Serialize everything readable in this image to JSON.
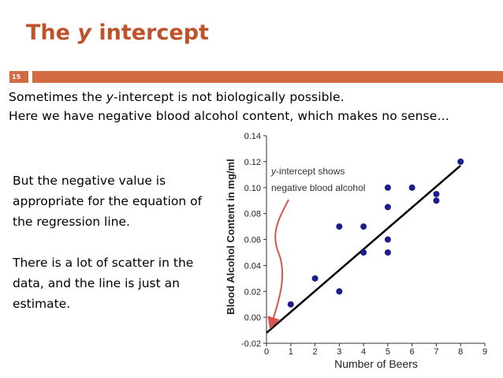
{
  "slide": {
    "title_before": "The ",
    "title_var": "y",
    "title_after": " intercept",
    "slide_number": "15",
    "line1_before": "Sometimes the ",
    "line1_var": "y",
    "line1_after": "-intercept is not biologically possible.",
    "line2": "Here we have negative blood alcohol content, which makes no sense…",
    "para1": "But the negative value is appropriate for the equation of the regression line.",
    "para2": "There is a lot of scatter in the data, and the line is just an estimate.",
    "accent_color": "#d26b44",
    "title_color": "#c0522b"
  },
  "chart_data": {
    "type": "scatter",
    "xlabel": "Number of Beers",
    "ylabel": "Blood Alcohol Content in mg/ml",
    "xlim": [
      0,
      9
    ],
    "ylim": [
      -0.02,
      0.14
    ],
    "x_ticks": [
      "0",
      "1",
      "2",
      "3",
      "4",
      "5",
      "6",
      "7",
      "8",
      "9"
    ],
    "y_ticks": [
      "-0.02",
      "0.00",
      "0.02",
      "0.04",
      "0.06",
      "0.08",
      "0.10",
      "0.12",
      "0.14"
    ],
    "points": [
      {
        "x": 1,
        "y": 0.01
      },
      {
        "x": 2,
        "y": 0.03
      },
      {
        "x": 3,
        "y": 0.07
      },
      {
        "x": 3,
        "y": 0.02
      },
      {
        "x": 4,
        "y": 0.07
      },
      {
        "x": 4,
        "y": 0.05
      },
      {
        "x": 5,
        "y": 0.1
      },
      {
        "x": 5,
        "y": 0.085
      },
      {
        "x": 5,
        "y": 0.06
      },
      {
        "x": 5,
        "y": 0.05
      },
      {
        "x": 6,
        "y": 0.1
      },
      {
        "x": 7,
        "y": 0.095
      },
      {
        "x": 7,
        "y": 0.09
      },
      {
        "x": 8,
        "y": 0.12
      }
    ],
    "regression_line": {
      "x0": 0,
      "y0": -0.012,
      "x1": 8,
      "y1": 0.117
    },
    "annotation": {
      "line1_var": "y",
      "line1_rest": "-intercept shows",
      "line2": "negative blood alcohol",
      "arrow_color": "#d9534f"
    },
    "point_color": "#1c1c8c",
    "line_color": "#000000"
  }
}
